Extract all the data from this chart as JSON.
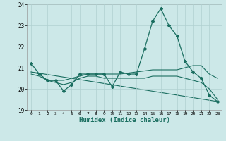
{
  "xlabel": "Humidex (Indice chaleur)",
  "xlim": [
    -0.5,
    23.5
  ],
  "ylim": [
    19,
    24
  ],
  "yticks": [
    19,
    20,
    21,
    22,
    23,
    24
  ],
  "xticks": [
    0,
    1,
    2,
    3,
    4,
    5,
    6,
    7,
    8,
    9,
    10,
    11,
    12,
    13,
    14,
    15,
    16,
    17,
    18,
    19,
    20,
    21,
    22,
    23
  ],
  "bg_color": "#cce8e8",
  "grid_color": "#b0d0d0",
  "line_color": "#1a6e60",
  "line1_x": [
    0,
    1,
    2,
    3,
    4,
    5,
    6,
    7,
    8,
    9,
    10,
    11,
    12,
    13,
    14,
    15,
    16,
    17,
    18,
    19,
    20,
    21,
    22,
    23
  ],
  "line1_y": [
    21.2,
    20.7,
    20.4,
    20.4,
    19.9,
    20.2,
    20.7,
    20.7,
    20.7,
    20.7,
    20.1,
    20.8,
    20.7,
    20.7,
    21.9,
    23.2,
    23.8,
    23.0,
    22.5,
    21.3,
    20.8,
    20.5,
    19.7,
    19.4
  ],
  "line2_x": [
    0,
    1,
    2,
    3,
    4,
    5,
    6,
    7,
    8,
    9,
    10,
    11,
    12,
    13,
    14,
    15,
    16,
    17,
    18,
    19,
    20,
    21,
    22,
    23
  ],
  "line2_y": [
    20.8,
    20.7,
    20.4,
    20.4,
    20.4,
    20.5,
    20.6,
    20.7,
    20.7,
    20.7,
    20.7,
    20.7,
    20.75,
    20.8,
    20.85,
    20.9,
    20.9,
    20.9,
    20.9,
    21.0,
    21.1,
    21.1,
    20.7,
    20.5
  ],
  "line3_x": [
    0,
    1,
    2,
    3,
    4,
    5,
    6,
    7,
    8,
    9,
    10,
    11,
    12,
    13,
    14,
    15,
    16,
    17,
    18,
    19,
    20,
    21,
    22,
    23
  ],
  "line3_y": [
    20.7,
    20.6,
    20.4,
    20.3,
    20.2,
    20.3,
    20.5,
    20.6,
    20.6,
    20.5,
    20.5,
    20.5,
    20.5,
    20.5,
    20.5,
    20.6,
    20.6,
    20.6,
    20.6,
    20.5,
    20.4,
    20.3,
    20.0,
    19.5
  ],
  "line4_x": [
    0,
    23
  ],
  "line4_y": [
    20.8,
    19.4
  ]
}
